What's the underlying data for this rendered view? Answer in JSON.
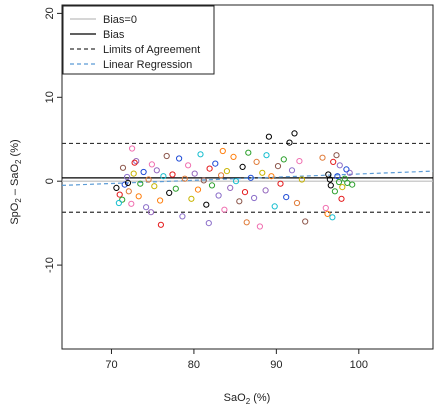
{
  "chart_data": {
    "type": "scatter",
    "xlabel": "SaO",
    "xlabel_sub": "2",
    "xlabel_unit": " (%)",
    "ylabel_parts": [
      "SpO",
      "2",
      " – SaO",
      "2",
      " (%)"
    ],
    "xlim": [
      64,
      109
    ],
    "ylim": [
      -20,
      21
    ],
    "x_ticks": [
      70,
      80,
      90,
      100
    ],
    "y_ticks": [
      -10,
      0,
      10,
      20
    ],
    "grid": false,
    "legend_position": "top-left",
    "legend": [
      {
        "label": "Bias=0",
        "color": "#bdbdbd",
        "dash": "solid"
      },
      {
        "label": "Bias",
        "color": "#000000",
        "dash": "solid"
      },
      {
        "label": "Limits of Agreement",
        "color": "#333333",
        "dash": "dashed"
      },
      {
        "label": "Linear Regression",
        "color": "#5b9bd5",
        "dash": "dashed"
      }
    ],
    "reference_lines": {
      "bias_zero": 0,
      "bias": 0.4,
      "loa_upper": 4.5,
      "loa_lower": -3.7
    },
    "regression": {
      "x": [
        64,
        109
      ],
      "y": [
        -0.5,
        1.2
      ]
    },
    "point_colors": [
      "#000000",
      "#e41a1c",
      "#2ca02c",
      "#1f4bd6",
      "#8b6ec9",
      "#e07b39",
      "#f06fb0",
      "#c8b400",
      "#9467bd",
      "#ff7f0e",
      "#17becf",
      "#8c564b"
    ],
    "points": [
      [
        70.6,
        -0.8,
        0
      ],
      [
        71.0,
        -1.6,
        1
      ],
      [
        71.3,
        -2.2,
        2
      ],
      [
        71.6,
        -0.4,
        3
      ],
      [
        71.9,
        0.5,
        4
      ],
      [
        72.1,
        -1.2,
        5
      ],
      [
        72.4,
        -2.7,
        6
      ],
      [
        72.7,
        0.9,
        7
      ],
      [
        73.0,
        2.4,
        8
      ],
      [
        73.3,
        -1.8,
        9
      ],
      [
        70.9,
        -2.6,
        10
      ],
      [
        71.4,
        1.6,
        11
      ],
      [
        72.0,
        -0.2,
        0
      ],
      [
        72.8,
        2.2,
        1
      ],
      [
        73.5,
        -0.3,
        2
      ],
      [
        73.9,
        1.1,
        3
      ],
      [
        74.2,
        -3.1,
        4
      ],
      [
        74.5,
        0.2,
        5
      ],
      [
        74.9,
        2.0,
        6
      ],
      [
        75.2,
        -0.6,
        7
      ],
      [
        75.5,
        1.3,
        8
      ],
      [
        75.9,
        -2.3,
        9
      ],
      [
        76.3,
        0.6,
        10
      ],
      [
        76.7,
        3.0,
        11
      ],
      [
        77.0,
        -1.4,
        0
      ],
      [
        77.4,
        0.8,
        1
      ],
      [
        77.8,
        -0.9,
        2
      ],
      [
        78.2,
        2.7,
        3
      ],
      [
        78.6,
        -4.2,
        4
      ],
      [
        78.9,
        0.3,
        5
      ],
      [
        79.3,
        1.9,
        6
      ],
      [
        79.7,
        -2.1,
        7
      ],
      [
        80.1,
        0.9,
        8
      ],
      [
        80.5,
        -1.0,
        9
      ],
      [
        80.8,
        3.2,
        10
      ],
      [
        81.2,
        0.1,
        11
      ],
      [
        81.5,
        -2.8,
        0
      ],
      [
        81.9,
        1.5,
        1
      ],
      [
        82.2,
        -0.5,
        2
      ],
      [
        82.6,
        2.1,
        3
      ],
      [
        83.0,
        -1.7,
        4
      ],
      [
        83.3,
        0.7,
        5
      ],
      [
        83.7,
        -3.4,
        6
      ],
      [
        84.0,
        1.2,
        7
      ],
      [
        84.4,
        -0.8,
        8
      ],
      [
        84.8,
        2.9,
        9
      ],
      [
        85.1,
        0.0,
        10
      ],
      [
        85.5,
        -2.4,
        11
      ],
      [
        85.9,
        1.7,
        0
      ],
      [
        86.2,
        -1.3,
        1
      ],
      [
        86.6,
        3.4,
        2
      ],
      [
        86.9,
        0.4,
        3
      ],
      [
        87.3,
        -2.0,
        4
      ],
      [
        87.6,
        2.3,
        5
      ],
      [
        88.0,
        -5.4,
        6
      ],
      [
        88.3,
        1.0,
        7
      ],
      [
        88.7,
        -1.1,
        8
      ],
      [
        89.1,
        5.3,
        0
      ],
      [
        89.4,
        0.6,
        9
      ],
      [
        89.8,
        -3.0,
        10
      ],
      [
        90.2,
        1.8,
        11
      ],
      [
        90.5,
        -0.3,
        1
      ],
      [
        90.9,
        2.6,
        2
      ],
      [
        91.2,
        -1.9,
        3
      ],
      [
        91.6,
        4.6,
        0
      ],
      [
        91.9,
        1.3,
        4
      ],
      [
        92.2,
        5.7,
        0
      ],
      [
        92.5,
        -2.6,
        5
      ],
      [
        92.8,
        2.4,
        6
      ],
      [
        93.1,
        0.2,
        7
      ],
      [
        76.0,
        -5.2,
        1
      ],
      [
        81.8,
        -5.0,
        4
      ],
      [
        86.4,
        -4.9,
        5
      ],
      [
        72.5,
        3.9,
        6
      ],
      [
        74.8,
        -3.7,
        8
      ],
      [
        83.5,
        3.6,
        9
      ],
      [
        88.8,
        3.1,
        10
      ],
      [
        93.5,
        -4.8,
        11
      ],
      [
        95.6,
        2.8,
        5
      ],
      [
        96.0,
        -3.2,
        6
      ],
      [
        96.3,
        0.8,
        0
      ],
      [
        96.6,
        -0.5,
        0
      ],
      [
        96.9,
        2.3,
        1
      ],
      [
        97.1,
        -1.2,
        2
      ],
      [
        97.4,
        0.6,
        3
      ],
      [
        97.7,
        1.9,
        4
      ],
      [
        98.0,
        -0.7,
        7
      ],
      [
        98.3,
        0.3,
        2
      ],
      [
        98.6,
        -0.2,
        2
      ],
      [
        98.9,
        1.0,
        8
      ],
      [
        99.2,
        -0.4,
        2
      ],
      [
        96.2,
        -3.9,
        9
      ],
      [
        96.8,
        -4.3,
        10
      ],
      [
        97.3,
        3.1,
        11
      ],
      [
        97.9,
        -2.1,
        1
      ],
      [
        98.5,
        1.4,
        3
      ],
      [
        96.5,
        0.2,
        0
      ],
      [
        97.6,
        -0.1,
        2
      ]
    ]
  }
}
